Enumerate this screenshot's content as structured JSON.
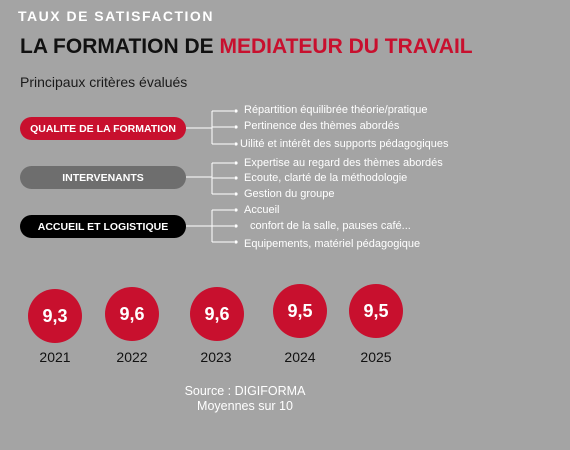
{
  "header": {
    "kicker": "TAUX DE SATISFACTION",
    "title_part1": "LA FORMATION DE ",
    "title_part2": "MEDIATEUR DU TRAVAIL",
    "subtitle": "Principaux critères évalués"
  },
  "colors": {
    "accent": "#c8102e",
    "background": "#a4a4a4",
    "pill_gray": "#6e6e6e",
    "pill_black": "#000000"
  },
  "groups": [
    {
      "label": "QUALITE DE LA FORMATION",
      "criteria": [
        "Répartition équilibrée théorie/pratique",
        "Pertinence des thèmes abordés",
        "Uilité et intérêt des supports pédagogiques"
      ]
    },
    {
      "label": "INTERVENANTS",
      "criteria": [
        "Expertise au regard des  thèmes abordés",
        "Ecoute, clarté de la méthodologie",
        "Gestion du groupe"
      ]
    },
    {
      "label": "ACCUEIL ET LOGISTIQUE",
      "criteria": [
        "Accueil",
        "confort de la salle, pauses café...",
        "Equipements, matériel pédagogique"
      ]
    }
  ],
  "scores": [
    {
      "value": "9,3",
      "year": "2021"
    },
    {
      "value": "9,6",
      "year": "2022"
    },
    {
      "value": "9,6",
      "year": "2023"
    },
    {
      "value": "9,5",
      "year": "2024"
    },
    {
      "value": "9,5",
      "year": "2025"
    }
  ],
  "footer": {
    "source": "Source : DIGIFORMA",
    "note": "Moyennes sur 10"
  }
}
